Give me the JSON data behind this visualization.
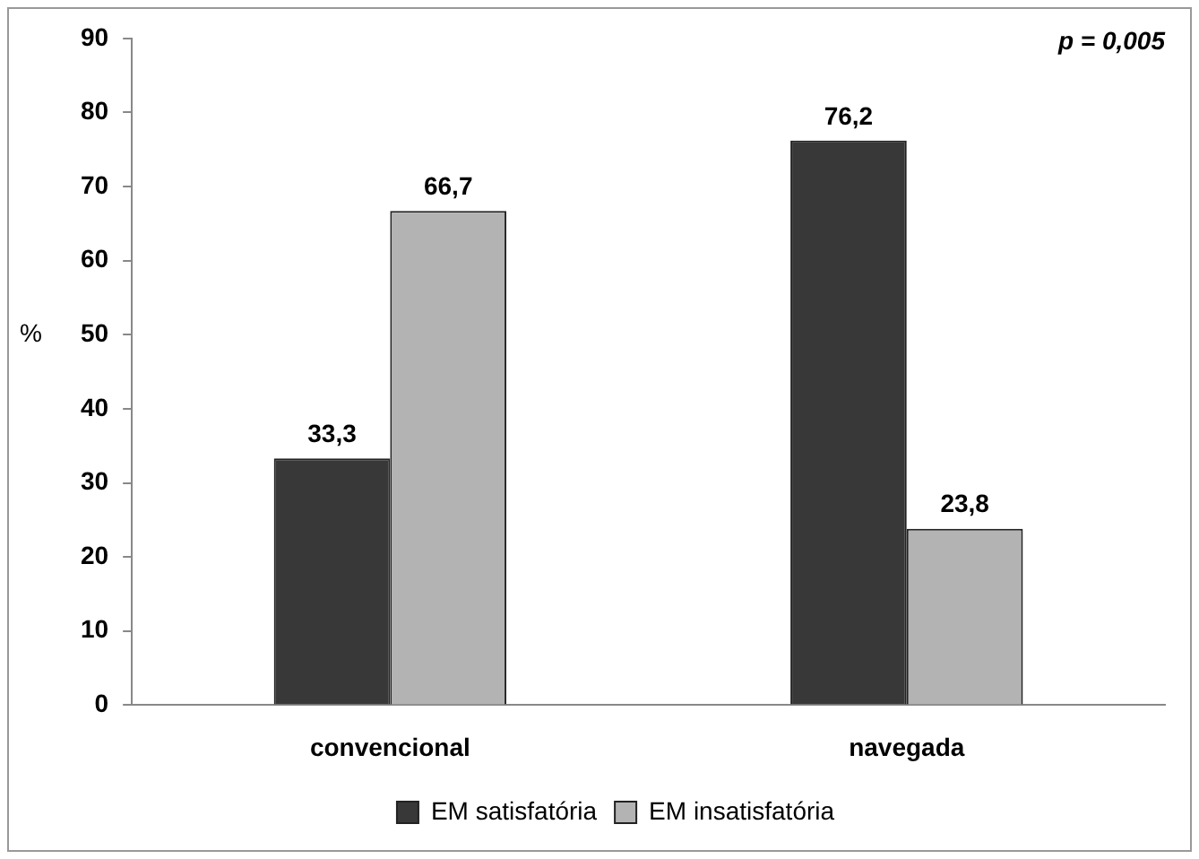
{
  "chart_data": {
    "type": "bar",
    "ylabel": "%",
    "categories": [
      "convencional",
      "navegada"
    ],
    "series": [
      {
        "name": "EM satisfatória",
        "color": "#383838",
        "values": [
          33.3,
          76.2
        ],
        "value_labels": [
          "33,3",
          "76,2"
        ]
      },
      {
        "name": "EM insatisfatória",
        "color": "#b3b3b3",
        "values": [
          66.7,
          23.8
        ],
        "value_labels": [
          "66,7",
          "23,8"
        ]
      }
    ],
    "ylim": [
      0,
      90
    ],
    "yticks": [
      0,
      10,
      20,
      30,
      40,
      50,
      60,
      70,
      80,
      90
    ],
    "grid": false,
    "legend": "bottom",
    "annotations": [
      "p = 0,005"
    ]
  }
}
